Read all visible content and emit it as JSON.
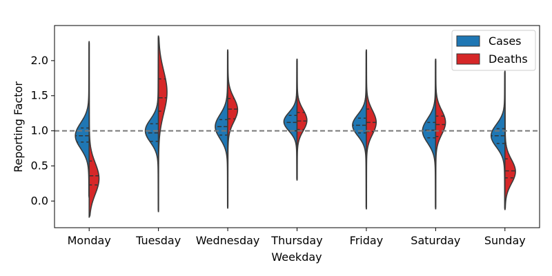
{
  "chart_data": {
    "type": "split-violin",
    "xlabel": "Weekday",
    "ylabel": "Reporting Factor",
    "ylim": [
      -0.38,
      2.5
    ],
    "yticks": [
      0.0,
      0.5,
      1.0,
      1.5,
      2.0
    ],
    "ytick_labels": [
      "0.0",
      "0.5",
      "1.0",
      "1.5",
      "2.0"
    ],
    "reference_line": 1.0,
    "categories": [
      "Monday",
      "Tuesday",
      "Wednesday",
      "Thursday",
      "Friday",
      "Saturday",
      "Sunday"
    ],
    "legend": {
      "position": "top-right",
      "entries": [
        {
          "name": "Cases",
          "color": "#1f77b4"
        },
        {
          "name": "Deaths",
          "color": "#d62728"
        }
      ]
    },
    "series": [
      {
        "name": "Cases",
        "color": "#1f77b4",
        "distributions": [
          {
            "day": "Monday",
            "min": 0.05,
            "max": 2.27,
            "peak": 0.93,
            "spread": 0.18,
            "maxwidth": 0.42,
            "quartiles": [
              0.84,
              0.93,
              1.04
            ]
          },
          {
            "day": "Tuesday",
            "min": -0.15,
            "max": 2.35,
            "peak": 1.0,
            "spread": 0.16,
            "maxwidth": 0.4,
            "quartiles": [
              0.85,
              0.97,
              1.1
            ]
          },
          {
            "day": "Wednesday",
            "min": -0.1,
            "max": 2.15,
            "peak": 1.06,
            "spread": 0.17,
            "maxwidth": 0.38,
            "quartiles": [
              0.94,
              1.06,
              1.16
            ]
          },
          {
            "day": "Thursday",
            "min": 0.3,
            "max": 2.02,
            "peak": 1.13,
            "spread": 0.13,
            "maxwidth": 0.4,
            "quartiles": [
              1.0,
              1.12,
              1.22
            ]
          },
          {
            "day": "Friday",
            "min": -0.11,
            "max": 2.15,
            "peak": 1.08,
            "spread": 0.15,
            "maxwidth": 0.42,
            "quartiles": [
              0.97,
              1.08,
              1.18
            ]
          },
          {
            "day": "Saturday",
            "min": -0.11,
            "max": 2.02,
            "peak": 1.0,
            "spread": 0.17,
            "maxwidth": 0.4,
            "quartiles": [
              0.9,
              1.01,
              1.12
            ]
          },
          {
            "day": "Sunday",
            "min": -0.12,
            "max": 1.85,
            "peak": 0.93,
            "spread": 0.16,
            "maxwidth": 0.42,
            "quartiles": [
              0.82,
              0.93,
              1.03
            ]
          }
        ]
      },
      {
        "name": "Deaths",
        "color": "#d62728",
        "distributions": [
          {
            "day": "Monday",
            "min": -0.23,
            "max": 2.27,
            "peak": 0.32,
            "spread": 0.22,
            "maxwidth": 0.3,
            "quartiles": [
              0.23,
              0.36,
              0.57
            ]
          },
          {
            "day": "Tuesday",
            "min": -0.15,
            "max": 2.35,
            "peak": 1.55,
            "spread": 0.3,
            "maxwidth": 0.26,
            "quartiles": [
              1.28,
              1.47,
              1.74
            ]
          },
          {
            "day": "Wednesday",
            "min": -0.1,
            "max": 2.15,
            "peak": 1.3,
            "spread": 0.17,
            "maxwidth": 0.3,
            "quartiles": [
              1.17,
              1.31,
              1.46
            ]
          },
          {
            "day": "Thursday",
            "min": 0.3,
            "max": 2.02,
            "peak": 1.15,
            "spread": 0.15,
            "maxwidth": 0.3,
            "quartiles": [
              1.02,
              1.14,
              1.26
            ]
          },
          {
            "day": "Friday",
            "min": -0.11,
            "max": 2.15,
            "peak": 1.12,
            "spread": 0.17,
            "maxwidth": 0.3,
            "quartiles": [
              0.99,
              1.12,
              1.31
            ]
          },
          {
            "day": "Saturday",
            "min": -0.11,
            "max": 2.02,
            "peak": 1.12,
            "spread": 0.17,
            "maxwidth": 0.3,
            "quartiles": [
              0.92,
              1.09,
              1.21
            ]
          },
          {
            "day": "Sunday",
            "min": -0.12,
            "max": 1.85,
            "peak": 0.42,
            "spread": 0.17,
            "maxwidth": 0.32,
            "quartiles": [
              0.33,
              0.43,
              0.6
            ]
          }
        ]
      }
    ]
  }
}
